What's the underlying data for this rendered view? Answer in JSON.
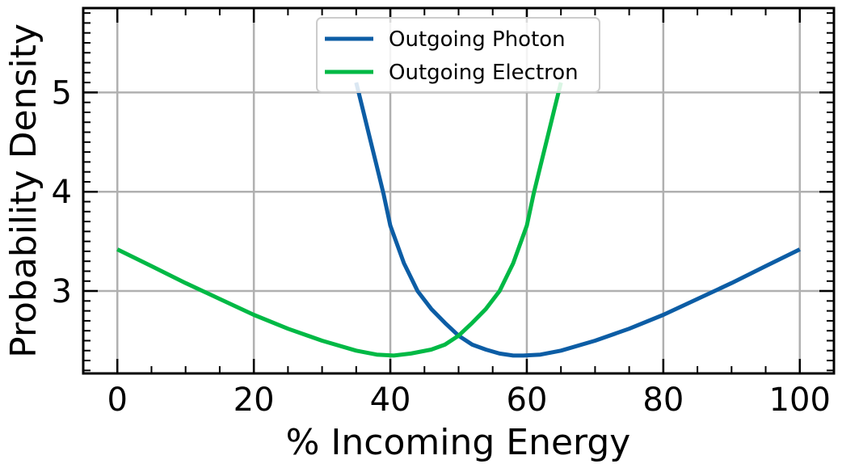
{
  "chart_data": {
    "type": "line",
    "title": "",
    "xlabel": "% Incoming Energy",
    "ylabel": "Probability Density",
    "xlim": [
      -5,
      105
    ],
    "ylim": [
      2.17,
      5.85
    ],
    "xticks": [
      0,
      20,
      40,
      60,
      80,
      100
    ],
    "xtick_labels": [
      "0",
      "20",
      "40",
      "60",
      "80",
      "100"
    ],
    "yticks": [
      3,
      4,
      5
    ],
    "ytick_labels": [
      "3",
      "4",
      "5"
    ],
    "grid": true,
    "legend_position": "top-center",
    "series": [
      {
        "name": "Outgoing Photon",
        "color": "#0c5da5",
        "x": [
          35,
          36,
          37,
          38,
          39,
          40,
          42,
          44,
          46,
          48,
          50,
          52,
          54,
          56,
          58,
          59.5,
          62,
          65,
          70,
          75,
          80,
          85,
          90,
          95,
          100
        ],
        "y": [
          5.1,
          4.82,
          4.54,
          4.26,
          3.98,
          3.66,
          3.28,
          3.0,
          2.82,
          2.68,
          2.55,
          2.46,
          2.41,
          2.37,
          2.35,
          2.35,
          2.36,
          2.4,
          2.5,
          2.62,
          2.76,
          2.92,
          3.08,
          3.25,
          3.42
        ]
      },
      {
        "name": "Outgoing Electron",
        "color": "#00b945",
        "x": [
          0,
          5,
          10,
          15,
          20,
          25,
          30,
          35,
          38,
          40.5,
          43,
          46,
          48,
          50,
          52,
          54,
          56,
          58,
          60,
          61,
          62,
          63,
          64,
          65
        ],
        "y": [
          3.42,
          3.25,
          3.08,
          2.92,
          2.76,
          2.62,
          2.5,
          2.4,
          2.36,
          2.35,
          2.37,
          2.41,
          2.46,
          2.55,
          2.68,
          2.82,
          3.0,
          3.28,
          3.66,
          3.98,
          4.26,
          4.54,
          4.82,
          5.1
        ]
      }
    ]
  }
}
